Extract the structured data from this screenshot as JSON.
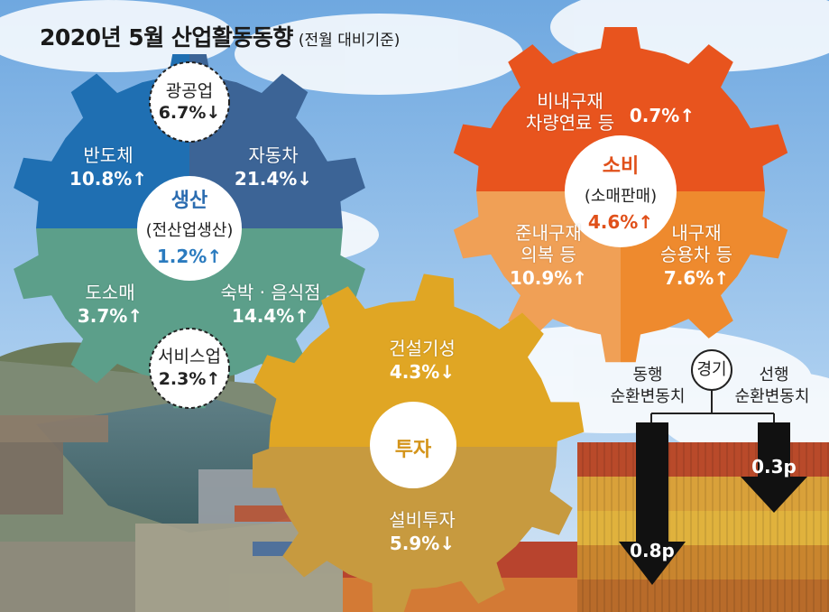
{
  "title": "2020년 5월 산업활동동향",
  "subtitle": "(전월 대비기준)",
  "production": {
    "hub_title": "생산",
    "hub_sub": "(전산업생산)",
    "hub_value": "1.2%↑",
    "mining": {
      "label": "광공업",
      "value": "6.7%↓"
    },
    "semiconductor": {
      "label": "반도체",
      "value": "10.8%↑"
    },
    "automobile": {
      "label": "자동차",
      "value": "21.4%↓"
    },
    "wholesale": {
      "label": "도소매",
      "value": "3.7%↑"
    },
    "lodging": {
      "label": "숙박 · 음식점",
      "value": "14.4%↑"
    },
    "service": {
      "label": "서비스업",
      "value": "2.3%↑"
    }
  },
  "consumption": {
    "hub_title": "소비",
    "hub_sub": "(소매판매)",
    "hub_value": "4.6%↑",
    "nondurable": {
      "line1": "비내구재",
      "line2": "차량연료 등",
      "value": "0.7%↑"
    },
    "semidurable": {
      "line1": "준내구재",
      "line2": "의복 등",
      "value": "10.9%↑"
    },
    "durable": {
      "line1": "내구재",
      "line2": "승용차 등",
      "value": "7.6%↑"
    }
  },
  "investment": {
    "hub_title": "투자",
    "construction": {
      "label": "건설기성",
      "value": "4.3%↓"
    },
    "equipment": {
      "label": "설비투자",
      "value": "5.9%↓"
    }
  },
  "economy": {
    "center": "경기",
    "coincident": {
      "line1": "동행",
      "line2": "순환변동치",
      "value": "0.8p"
    },
    "leading": {
      "line1": "선행",
      "line2": "순환변동치",
      "value": "0.3p"
    }
  },
  "colors": {
    "prod_top_left": "#1f6fb2",
    "prod_top_right": "#3c6496",
    "prod_bottom": "#5c9f8a",
    "cons_top": "#e8541e",
    "cons_bottom_left": "#f0a056",
    "cons_bottom_right": "#ee8a2e",
    "inv_top": "#e0a624",
    "inv_bottom": "#c79a3f"
  }
}
